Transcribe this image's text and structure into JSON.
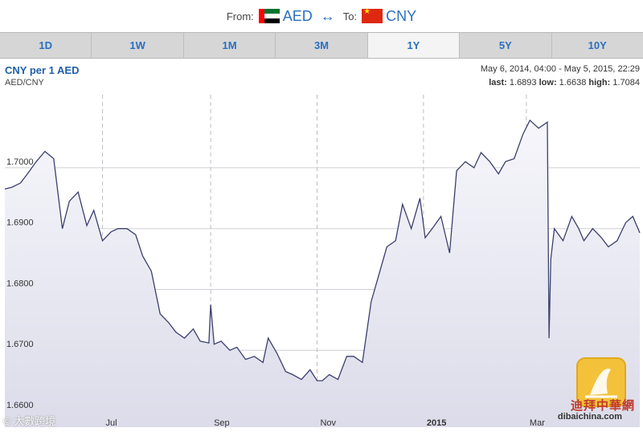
{
  "header": {
    "from_label": "From:",
    "from_code": "AED",
    "swap_symbol": "↔",
    "to_label": "To:",
    "to_code": "CNY"
  },
  "tabs": [
    {
      "label": "1D"
    },
    {
      "label": "1W"
    },
    {
      "label": "1M"
    },
    {
      "label": "3M"
    },
    {
      "label": "1Y",
      "active": true
    },
    {
      "label": "5Y"
    },
    {
      "label": "10Y"
    }
  ],
  "info": {
    "title": "CNY per 1 AED",
    "subtitle": "AED/CNY",
    "range": "May 6, 2014, 04:00 - May 5, 2015, 22:29",
    "last_label": "last:",
    "last_value": "1.6893",
    "low_label": "low:",
    "low_value": "1.6638",
    "high_label": "high:",
    "high_value": "1.7084"
  },
  "watermark": {
    "site_cn": "迪拜中華網",
    "site_en": "dibaichina.com",
    "credit": "© 大數跨境"
  },
  "colors": {
    "line": "#3a3f6e",
    "fill_top": "#f6f6fb",
    "fill_bottom": "#dcdcea",
    "tabs_bg": "#d6d6d6",
    "accent": "#2a6fbf"
  },
  "chart_data": {
    "type": "line",
    "xlabel": "",
    "ylabel": "",
    "xlim": [
      "2014-05-06",
      "2015-05-05"
    ],
    "ylim": [
      1.66,
      1.712
    ],
    "yticks": [
      1.66,
      1.67,
      1.68,
      1.69,
      1.7
    ],
    "ytick_labels": [
      "1.6600",
      "1.6700",
      "1.6800",
      "1.6900",
      "1.7000"
    ],
    "xtick_dates": [
      "2014-07-01",
      "2014-09-01",
      "2014-11-01",
      "2015-01-01",
      "2015-03-01"
    ],
    "xtick_labels": [
      "Jul",
      "Sep",
      "Nov",
      "2015",
      "Mar"
    ],
    "grid": true,
    "x": [
      "2014-05-06",
      "2014-05-10",
      "2014-05-15",
      "2014-05-19",
      "2014-05-24",
      "2014-05-29",
      "2014-06-03",
      "2014-06-08",
      "2014-06-12",
      "2014-06-17",
      "2014-06-22",
      "2014-06-26",
      "2014-07-01",
      "2014-07-06",
      "2014-07-10",
      "2014-07-15",
      "2014-07-20",
      "2014-07-24",
      "2014-07-29",
      "2014-08-03",
      "2014-08-08",
      "2014-08-12",
      "2014-08-17",
      "2014-08-22",
      "2014-08-26",
      "2014-08-31",
      "2014-09-01",
      "2014-09-03",
      "2014-09-07",
      "2014-09-12",
      "2014-09-16",
      "2014-09-21",
      "2014-09-26",
      "2014-10-01",
      "2014-10-04",
      "2014-10-09",
      "2014-10-14",
      "2014-10-18",
      "2014-10-23",
      "2014-10-28",
      "2014-11-01",
      "2014-11-04",
      "2014-11-08",
      "2014-11-13",
      "2014-11-18",
      "2014-11-22",
      "2014-11-27",
      "2014-12-02",
      "2014-12-06",
      "2014-12-11",
      "2014-12-16",
      "2014-12-20",
      "2014-12-25",
      "2014-12-30",
      "2015-01-02",
      "2015-01-06",
      "2015-01-11",
      "2015-01-16",
      "2015-01-20",
      "2015-01-25",
      "2015-01-30",
      "2015-02-03",
      "2015-02-08",
      "2015-02-13",
      "2015-02-17",
      "2015-02-22",
      "2015-02-27",
      "2015-03-03",
      "2015-03-08",
      "2015-03-13",
      "2015-03-14",
      "2015-03-15",
      "2015-03-17",
      "2015-03-22",
      "2015-03-27",
      "2015-03-31",
      "2015-04-03",
      "2015-04-08",
      "2015-04-13",
      "2015-04-17",
      "2015-04-22",
      "2015-04-27",
      "2015-05-01",
      "2015-05-05"
    ],
    "series": [
      {
        "values": [
          1.6965,
          1.6968,
          1.6975,
          1.699,
          1.701,
          1.7027,
          1.7015,
          1.69,
          1.6945,
          1.696,
          1.6905,
          1.693,
          1.688,
          1.6895,
          1.69,
          1.69,
          1.689,
          1.6855,
          1.683,
          1.676,
          1.6745,
          1.673,
          1.672,
          1.6735,
          1.6715,
          1.6712,
          1.6775,
          1.671,
          1.6715,
          1.67,
          1.6705,
          1.6685,
          1.669,
          1.668,
          1.672,
          1.6695,
          1.6665,
          1.666,
          1.6652,
          1.6668,
          1.665,
          1.665,
          1.666,
          1.6652,
          1.669,
          1.669,
          1.668,
          1.678,
          1.682,
          1.687,
          1.688,
          1.694,
          1.69,
          1.695,
          1.6885,
          1.69,
          1.692,
          1.686,
          1.6995,
          1.701,
          1.7,
          1.7025,
          1.701,
          1.699,
          1.701,
          1.7015,
          1.7055,
          1.7078,
          1.7065,
          1.7075,
          1.672,
          1.685,
          1.69,
          1.688,
          1.692,
          1.69,
          1.688,
          1.69,
          1.6885,
          1.687,
          1.688,
          1.691,
          1.692,
          1.6893
        ]
      }
    ]
  }
}
